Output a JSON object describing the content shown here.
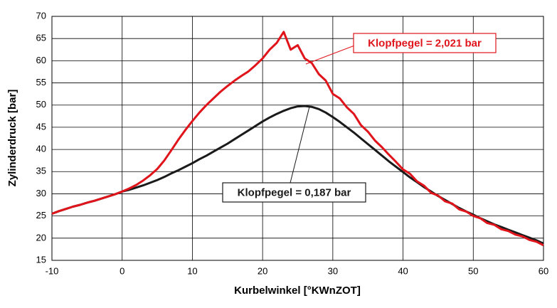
{
  "chart_data": {
    "type": "line",
    "xlabel": "Kurbelwinkel [°KWnZOT]",
    "ylabel": "Zylinderdruck [bar]",
    "xlim": [
      -10,
      60
    ],
    "xticks": [
      -10,
      0,
      10,
      20,
      30,
      40,
      50,
      60
    ],
    "ylim": [
      15,
      70
    ],
    "yticks": [
      15,
      20,
      25,
      30,
      35,
      40,
      45,
      50,
      55,
      60,
      65,
      70
    ],
    "grid": true,
    "x": [
      -10,
      -9,
      -8,
      -7,
      -6,
      -5,
      -4,
      -3,
      -2,
      -1,
      0,
      1,
      2,
      3,
      4,
      5,
      6,
      7,
      8,
      9,
      10,
      11,
      12,
      13,
      14,
      15,
      16,
      17,
      18,
      19,
      20,
      21,
      22,
      23,
      24,
      25,
      26,
      27,
      28,
      29,
      30,
      31,
      32,
      33,
      34,
      35,
      36,
      37,
      38,
      39,
      40,
      41,
      42,
      43,
      44,
      45,
      46,
      47,
      48,
      49,
      50,
      51,
      52,
      53,
      54,
      55,
      56,
      57,
      58,
      59,
      60
    ],
    "series": [
      {
        "color": "#1a1a1a",
        "values": [
          25.5,
          26.1,
          26.6,
          27.1,
          27.5,
          28.0,
          28.4,
          28.9,
          29.4,
          29.9,
          30.5,
          30.9,
          31.4,
          31.9,
          32.5,
          33.1,
          33.8,
          34.6,
          35.3,
          36.1,
          36.9,
          37.8,
          38.6,
          39.5,
          40.4,
          41.3,
          42.3,
          43.3,
          44.3,
          45.3,
          46.3,
          47.2,
          48.0,
          48.7,
          49.3,
          49.7,
          49.8,
          49.6,
          49.1,
          48.3,
          47.3,
          46.2,
          45.0,
          43.8,
          42.5,
          41.2,
          39.9,
          38.6,
          37.3,
          36.1,
          34.9,
          33.7,
          32.6,
          31.5,
          30.5,
          29.5,
          28.6,
          27.7,
          26.8,
          26.0,
          25.3,
          24.5,
          23.8,
          23.1,
          22.5,
          21.9,
          21.3,
          20.7,
          20.1,
          19.5,
          18.8
        ]
      },
      {
        "color": "#e0141b",
        "values": [
          25.5,
          26.1,
          26.6,
          27.1,
          27.5,
          28.0,
          28.4,
          28.9,
          29.4,
          29.9,
          30.5,
          31.2,
          32.0,
          33.0,
          34.2,
          35.6,
          37.5,
          39.8,
          42.2,
          44.4,
          46.4,
          48.3,
          50.0,
          51.5,
          53.0,
          54.3,
          55.5,
          56.6,
          57.6,
          59.0,
          60.5,
          62.5,
          64.0,
          66.5,
          62.5,
          63.5,
          60.5,
          59.5,
          57.0,
          55.5,
          52.5,
          51.5,
          49.5,
          48.0,
          45.5,
          44.0,
          42.0,
          40.5,
          38.8,
          37.2,
          35.5,
          34.5,
          32.8,
          31.8,
          30.2,
          29.6,
          28.3,
          27.8,
          26.5,
          26.0,
          25.0,
          24.5,
          23.4,
          23.0,
          22.0,
          21.6,
          20.8,
          20.4,
          19.6,
          19.2,
          18.4
        ]
      }
    ],
    "annotations": [
      {
        "text": "Klopfpegel = 2,021 bar",
        "series": 1
      },
      {
        "text": "Klopfpegel = 0,187 bar",
        "series": 0
      }
    ]
  }
}
